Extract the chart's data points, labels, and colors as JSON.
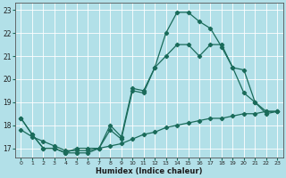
{
  "xlabel": "Humidex (Indice chaleur)",
  "xlim": [
    -0.5,
    23.5
  ],
  "ylim": [
    16.6,
    23.3
  ],
  "yticks": [
    17,
    18,
    19,
    20,
    21,
    22,
    23
  ],
  "xticks": [
    0,
    1,
    2,
    3,
    4,
    5,
    6,
    7,
    8,
    9,
    10,
    11,
    12,
    13,
    14,
    15,
    16,
    17,
    18,
    19,
    20,
    21,
    22,
    23
  ],
  "bg_color": "#b2e0e8",
  "line_color": "#1a6b5a",
  "grid_color": "#ffffff",
  "line1_x": [
    0,
    1,
    2,
    3,
    4,
    5,
    6,
    7,
    8,
    9,
    10,
    11,
    12,
    13,
    14,
    15,
    16,
    17,
    18,
    19,
    20,
    21,
    22,
    23
  ],
  "line1_y": [
    18.3,
    17.6,
    17.0,
    17.0,
    16.8,
    16.8,
    16.8,
    17.0,
    17.8,
    17.4,
    19.5,
    19.4,
    20.5,
    22.0,
    22.9,
    22.9,
    22.5,
    22.2,
    21.4,
    20.5,
    19.4,
    19.0,
    18.6,
    18.6
  ],
  "line2_x": [
    0,
    1,
    2,
    3,
    4,
    5,
    6,
    7,
    8,
    9,
    10,
    11,
    12,
    13,
    14,
    15,
    16,
    17,
    18,
    19,
    20,
    21,
    22,
    23
  ],
  "line2_y": [
    17.8,
    17.5,
    17.3,
    17.1,
    16.9,
    16.9,
    16.9,
    17.0,
    17.1,
    17.2,
    17.4,
    17.6,
    17.7,
    17.9,
    18.0,
    18.1,
    18.2,
    18.3,
    18.3,
    18.4,
    18.5,
    18.5,
    18.6,
    18.6
  ],
  "line3_x": [
    0,
    1,
    2,
    3,
    4,
    5,
    6,
    7,
    8,
    9,
    10,
    11,
    12,
    13,
    14,
    15,
    16,
    17,
    18,
    19,
    20,
    21,
    22,
    23
  ],
  "line3_y": [
    18.3,
    17.6,
    17.0,
    17.0,
    16.8,
    17.0,
    17.0,
    17.0,
    18.0,
    17.5,
    19.6,
    19.5,
    20.5,
    21.0,
    21.5,
    21.5,
    21.0,
    21.5,
    21.5,
    20.5,
    20.4,
    19.0,
    18.5,
    18.6
  ]
}
